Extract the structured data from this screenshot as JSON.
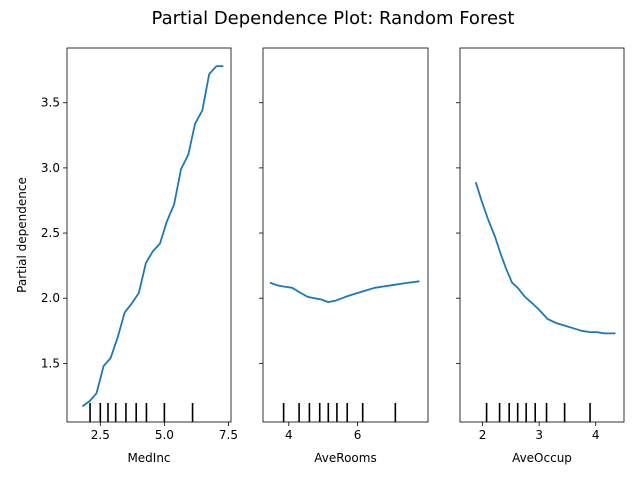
{
  "title": "Partial Dependence Plot: Random Forest",
  "line_color": "#1f77b4",
  "chart_data": [
    {
      "type": "line",
      "xlabel": "MedInc",
      "ylabel": "Partial dependence",
      "xlim": [
        1.2,
        7.6
      ],
      "ylim": [
        1.05,
        3.92
      ],
      "xticks": [
        2.5,
        5.0,
        7.5
      ],
      "xtick_labels": [
        "2.5",
        "5.0",
        "7.5"
      ],
      "yticks": [
        1.5,
        2.0,
        2.5,
        3.0,
        3.5
      ],
      "ytick_labels": [
        "1.5",
        "2.0",
        "2.5",
        "3.0",
        "3.5"
      ],
      "x": [
        1.8,
        2.08,
        2.35,
        2.63,
        2.9,
        3.18,
        3.45,
        3.73,
        4.0,
        4.28,
        4.55,
        4.83,
        5.1,
        5.38,
        5.65,
        5.93,
        6.2,
        6.48,
        6.75,
        7.03,
        7.3
      ],
      "y": [
        1.17,
        1.21,
        1.27,
        1.48,
        1.54,
        1.7,
        1.89,
        1.96,
        2.04,
        2.27,
        2.36,
        2.42,
        2.59,
        2.72,
        2.99,
        3.1,
        3.34,
        3.44,
        3.72,
        3.78,
        3.78
      ],
      "deciles": [
        2.1,
        2.5,
        2.8,
        3.1,
        3.5,
        3.9,
        4.3,
        5.0,
        6.1
      ]
    },
    {
      "type": "line",
      "xlabel": "AveRooms",
      "ylabel": "",
      "xlim": [
        3.25,
        8.05
      ],
      "ylim": [
        1.05,
        3.92
      ],
      "xticks": [
        4,
        6
      ],
      "xtick_labels": [
        "4",
        "6"
      ],
      "yticks": [
        1.5,
        2.0,
        2.5,
        3.0,
        3.5
      ],
      "ytick_labels": [
        "",
        "",
        "",
        "",
        ""
      ],
      "x": [
        3.45,
        3.65,
        3.85,
        4.1,
        4.35,
        4.55,
        4.75,
        4.95,
        5.15,
        5.35,
        5.55,
        5.75,
        6.0,
        6.25,
        6.5,
        6.75,
        7.0,
        7.25,
        7.5,
        7.8
      ],
      "y": [
        2.12,
        2.1,
        2.09,
        2.08,
        2.04,
        2.01,
        2.0,
        1.99,
        1.97,
        1.98,
        2.0,
        2.02,
        2.04,
        2.06,
        2.08,
        2.09,
        2.1,
        2.11,
        2.12,
        2.13
      ],
      "deciles": [
        3.85,
        4.3,
        4.6,
        4.9,
        5.15,
        5.4,
        5.7,
        6.15,
        7.1
      ]
    },
    {
      "type": "line",
      "xlabel": "AveOccup",
      "ylabel": "",
      "xlim": [
        1.6,
        4.5
      ],
      "ylim": [
        1.05,
        3.92
      ],
      "xticks": [
        2,
        3,
        4
      ],
      "xtick_labels": [
        "2",
        "3",
        "4"
      ],
      "yticks": [
        1.5,
        2.0,
        2.5,
        3.0,
        3.5
      ],
      "ytick_labels": [
        "",
        "",
        "",
        "",
        ""
      ],
      "x": [
        1.88,
        1.98,
        2.1,
        2.22,
        2.32,
        2.42,
        2.52,
        2.62,
        2.75,
        2.88,
        3.0,
        3.15,
        3.3,
        3.45,
        3.6,
        3.75,
        3.9,
        4.02,
        4.15,
        4.35
      ],
      "y": [
        2.89,
        2.75,
        2.6,
        2.47,
        2.34,
        2.22,
        2.12,
        2.08,
        2.01,
        1.96,
        1.91,
        1.84,
        1.81,
        1.79,
        1.77,
        1.75,
        1.74,
        1.74,
        1.73,
        1.73
      ],
      "deciles": [
        2.07,
        2.3,
        2.47,
        2.62,
        2.77,
        2.93,
        3.13,
        3.45,
        3.9
      ]
    }
  ]
}
